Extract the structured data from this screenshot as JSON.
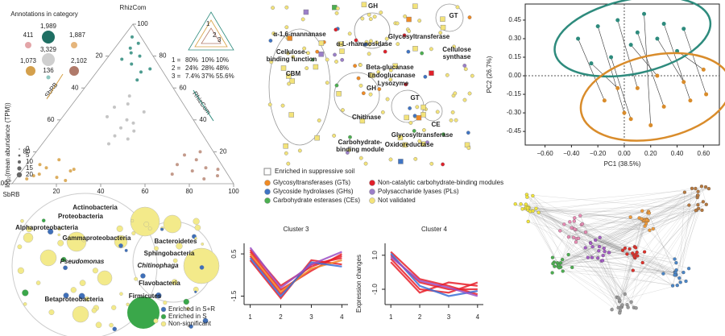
{
  "chart_data": [
    {
      "type": "ternary",
      "title": "Annotations in category",
      "top_label": "RhizCom",
      "left_label": "SbRB",
      "left_axis_label": "SbRB",
      "right_axis_label": "RhizCom",
      "ticks": [
        20,
        40,
        60,
        80,
        100
      ],
      "category_counts": [
        {
          "label": "1,989",
          "color": "#1f6f63"
        },
        {
          "label": "411",
          "color": "#e3a5a8"
        },
        {
          "label": "1,887",
          "color": "#e5b57c"
        },
        {
          "label": "3,329",
          "color": "#cfcfcf"
        },
        {
          "label": "1,073",
          "color": "#d4a04c"
        },
        {
          "label": "136",
          "color": "#8fc7c0"
        },
        {
          "label": "2,102",
          "color": "#b07a6a"
        }
      ],
      "size_legend_title": "log₂(mean abundance (TPM))",
      "size_legend": [
        0,
        5,
        10,
        15,
        20
      ],
      "inset_numbers": [
        "1",
        "2",
        "3"
      ],
      "inset_rows": [
        [
          "1 =",
          "80%",
          "10%",
          "10%"
        ],
        [
          "2 =",
          "24%",
          "28%",
          "48%"
        ],
        [
          "3 =",
          "7.4%",
          "37%",
          "55.6%"
        ]
      ],
      "inset_colors": [
        "#555555",
        "#1f8a7a",
        "#d9a24a",
        "#b07a6a"
      ],
      "series": [
        {
          "color": "#bbbbbb",
          "rhiz": [
            40,
            35,
            50,
            30,
            45,
            25,
            55,
            38,
            42,
            33,
            28,
            48
          ],
          "sbrb": [
            30,
            35,
            25,
            40,
            20,
            45,
            22,
            28,
            38,
            30,
            35,
            32
          ]
        },
        {
          "color": "#2e8b7d",
          "rhiz": [
            92,
            85,
            80,
            75,
            70,
            88,
            78,
            65,
            82,
            72
          ],
          "sbrb": [
            4,
            8,
            6,
            12,
            10,
            3,
            15,
            14,
            9,
            5
          ]
        },
        {
          "color": "#d6a044",
          "rhiz": [
            3,
            6,
            10,
            2,
            8,
            12,
            5,
            15,
            4,
            9
          ],
          "sbrb": [
            92,
            85,
            80,
            75,
            70,
            82,
            88,
            72,
            78,
            68
          ]
        },
        {
          "color": "#b98877",
          "rhiz": [
            5,
            10,
            8,
            15,
            3,
            12,
            20,
            6,
            9,
            18
          ],
          "sbrb": [
            5,
            8,
            15,
            10,
            12,
            20,
            6,
            25,
            3,
            14
          ]
        }
      ]
    },
    {
      "type": "scatter",
      "xlabel": "PC1 (38.5%)",
      "ylabel": "PC2 (26.7%)",
      "xlim": [
        -0.75,
        0.72
      ],
      "ylim": [
        -0.56,
        0.58
      ],
      "xticks": [
        {
          "value": -0.6,
          "label": "−0.60"
        },
        {
          "value": -0.4,
          "label": "−0.40"
        },
        {
          "value": -0.2,
          "label": "−0.20"
        },
        {
          "value": 0,
          "label": "0.00"
        },
        {
          "value": 0.2,
          "label": "0.20"
        },
        {
          "value": 0.4,
          "label": "0.40"
        },
        {
          "value": 0.6,
          "label": "0.60"
        }
      ],
      "yticks": [
        {
          "value": -0.45,
          "label": "-0.45"
        },
        {
          "value": -0.3,
          "label": "-0.30"
        },
        {
          "value": -0.15,
          "label": "-0.15"
        },
        {
          "value": 0,
          "label": "0.00"
        },
        {
          "value": 0.15,
          "label": "0.15"
        },
        {
          "value": 0.3,
          "label": "0.30"
        },
        {
          "value": 0.45,
          "label": "0.45"
        }
      ],
      "series": [
        {
          "color": "#2e8b7d",
          "x": [
            -0.35,
            -0.2,
            -0.05,
            0.1,
            0.25,
            0.4,
            0.15,
            -0.1,
            0.3,
            0.05,
            -0.25,
            0.45
          ],
          "y": [
            0.3,
            0.4,
            0.45,
            0.35,
            0.3,
            0.2,
            0.5,
            0.15,
            0.42,
            0.25,
            0.1,
            0.38
          ]
        },
        {
          "color": "#d98c2b",
          "x": [
            -0.15,
            0.0,
            0.1,
            0.3,
            0.45,
            0.6,
            0.2,
            0.05,
            0.5,
            0.25,
            -0.05,
            0.62
          ],
          "y": [
            -0.2,
            -0.3,
            -0.1,
            -0.25,
            -0.05,
            0.05,
            -0.4,
            -0.35,
            -0.2,
            0.0,
            -0.1,
            -0.15
          ]
        }
      ]
    },
    {
      "type": "line",
      "title": "Cluster 3",
      "x": [
        1,
        2,
        3,
        4
      ],
      "xlim": [
        0.8,
        4.2
      ],
      "ylim": [
        -1.9,
        1.0
      ],
      "xticks": [
        1,
        2,
        3,
        4
      ],
      "yticks": [
        0.5,
        -1.5
      ],
      "series": [
        {
          "color": "#e8202a",
          "values": [
            0.4,
            -1.4,
            0.0,
            0.3
          ]
        },
        {
          "color": "#e8202a",
          "values": [
            0.6,
            -1.2,
            -0.3,
            0.5
          ]
        },
        {
          "color": "#e8202a",
          "values": [
            0.2,
            -1.6,
            0.2,
            0.0
          ]
        },
        {
          "color": "#e8202a",
          "values": [
            0.7,
            -1.0,
            -0.1,
            0.4
          ]
        },
        {
          "color": "#f08a24",
          "values": [
            0.5,
            -1.3,
            -0.2,
            0.2
          ]
        },
        {
          "color": "#3b6fd6",
          "values": [
            0.3,
            -1.5,
            0.1,
            -0.1
          ]
        },
        {
          "color": "#9b4fc4",
          "values": [
            0.8,
            -1.1,
            0.0,
            0.6
          ]
        }
      ]
    },
    {
      "type": "line",
      "title": "Cluster 4",
      "ylabel": "Expression changes",
      "x": [
        1,
        2,
        3,
        4
      ],
      "xlim": [
        0.8,
        4.2
      ],
      "ylim": [
        -1.9,
        1.7
      ],
      "xticks": [
        1,
        2,
        3,
        4
      ],
      "yticks": [
        {
          "value": 1,
          "label": "1.0"
        },
        {
          "value": -1,
          "label": "-1.0"
        }
      ],
      "series": [
        {
          "color": "#e8202a",
          "values": [
            1.0,
            -0.6,
            -1.0,
            -1.0
          ]
        },
        {
          "color": "#e8202a",
          "values": [
            0.8,
            -1.0,
            -1.2,
            -0.6
          ]
        },
        {
          "color": "#e8202a",
          "values": [
            1.2,
            -0.4,
            -0.8,
            -1.3
          ]
        },
        {
          "color": "#e8202a",
          "values": [
            0.6,
            -1.2,
            -0.6,
            -0.8
          ]
        },
        {
          "color": "#3b6fd6",
          "values": [
            1.1,
            -0.8,
            -1.4,
            -1.1
          ]
        },
        {
          "color": "#9b4fc4",
          "values": [
            0.9,
            -0.5,
            -0.9,
            -1.4
          ]
        }
      ]
    }
  ],
  "enrichment_diagram": {
    "labels": [
      "α-1,6-mannanase",
      "GH",
      "GT",
      "Glycosyltransferase",
      [
        "Cellulose",
        "synthase"
      ],
      [
        "Cellulose-",
        "binding function"
      ],
      "α-L-rhamnosidase",
      "CBM",
      "Beta-glucanase",
      "Endoglucanase",
      "Lysozyme",
      "GH",
      "GT",
      "Chitinase",
      "CE",
      "Glycosyltransferase",
      [
        "Carbohydrate-",
        "binding module"
      ],
      "Oxidoreductase"
    ],
    "enriched_label": "Enriched in suppressive soil",
    "legend": [
      {
        "label": "Glycosyltransferases (GTs)",
        "color": "#f08a24"
      },
      {
        "label": "Glycoside hydrolases (GHs)",
        "color": "#3f74c4"
      },
      {
        "label": "Carbohydrate esterases (CEs)",
        "color": "#4caf50"
      },
      {
        "label": "Non-catalytic carbohydrate-binding modules",
        "color": "#e0202a"
      },
      {
        "label": "Polysaccharide lyases (PLs)",
        "color": "#9b7fc8"
      },
      {
        "label": "Not validated",
        "color": "#f3e37a"
      }
    ]
  },
  "taxonomy_diagram": {
    "labels": [
      "Proteobacteria",
      "Actinobacteria",
      "Alphaproteobacteria",
      "Gammaproteobacteria",
      "Bacteroidetes",
      "Sphingobacteria",
      "Chitinophaga",
      "Flavobacteria",
      "Pseudomonas",
      "Betaproteobacteria",
      "Firmicutes"
    ],
    "legend": [
      {
        "label": "Enriched in S+R",
        "color": "#3f6fb8"
      },
      {
        "label": "Enriched in S",
        "color": "#3aa74a"
      },
      {
        "label": "Non-significant",
        "color": "#f3ea8a"
      }
    ]
  }
}
